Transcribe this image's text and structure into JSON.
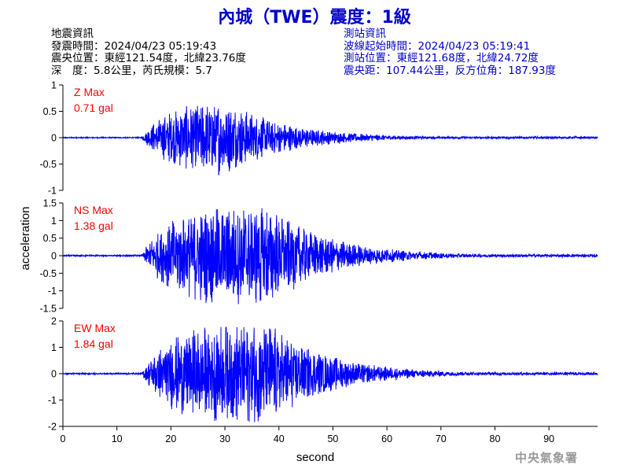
{
  "header": {
    "title": "內城（TWE）震度：1級"
  },
  "earthquake_info": {
    "heading": "地震資訊",
    "origin_time": "發震時間：2024/04/23 05:19:43",
    "epicenter": "震央位置：東經121.54度，北緯23.76度",
    "depth_magnitude": "深　度：5.8公里，芮氏規模：5.7"
  },
  "station_info": {
    "heading": "測站資訊",
    "wave_start": "波線起始時間：2024/04/23 05:19:41",
    "station_location": "測站位置：東經121.68度，北緯24.72度",
    "distance_azimuth": "震央距：107.44公里，反方位角：187.93度"
  },
  "watermark": "中央氣象署",
  "chart_data": {
    "type": "line",
    "xlabel": "second",
    "ylabel": "acceleration",
    "xlim": [
      0,
      100
    ],
    "xticks": [
      0,
      10,
      20,
      30,
      40,
      50,
      60,
      70,
      80,
      90
    ],
    "line_color": "#0000ff",
    "label_color": "#ff0000",
    "panels": [
      {
        "name": "Z Max",
        "max_label": "0.71 gal",
        "max": 0.71,
        "ylim": [
          -1,
          1
        ],
        "yticks": [
          1,
          0.5,
          0,
          -0.5,
          -1
        ],
        "yticklabels": [
          "1",
          "0.5",
          "0",
          "-0.5",
          "-1"
        ]
      },
      {
        "name": "NS Max",
        "max_label": "1.38 gal",
        "max": 1.38,
        "ylim": [
          -1.5,
          1.5
        ],
        "yticks": [
          1.5,
          1,
          0.5,
          0,
          -0.5,
          -1,
          -1.5
        ],
        "yticklabels": [
          "1.5",
          "1",
          "0.5",
          "0",
          "-0.5",
          "-1",
          "-1.5"
        ]
      },
      {
        "name": "EW Max",
        "max_label": "1.84 gal",
        "max": 1.84,
        "ylim": [
          -2,
          2
        ],
        "yticks": [
          2,
          1,
          0,
          -1,
          -2
        ],
        "yticklabels": [
          "2",
          "1",
          "0",
          "-1",
          "-2"
        ]
      }
    ]
  }
}
